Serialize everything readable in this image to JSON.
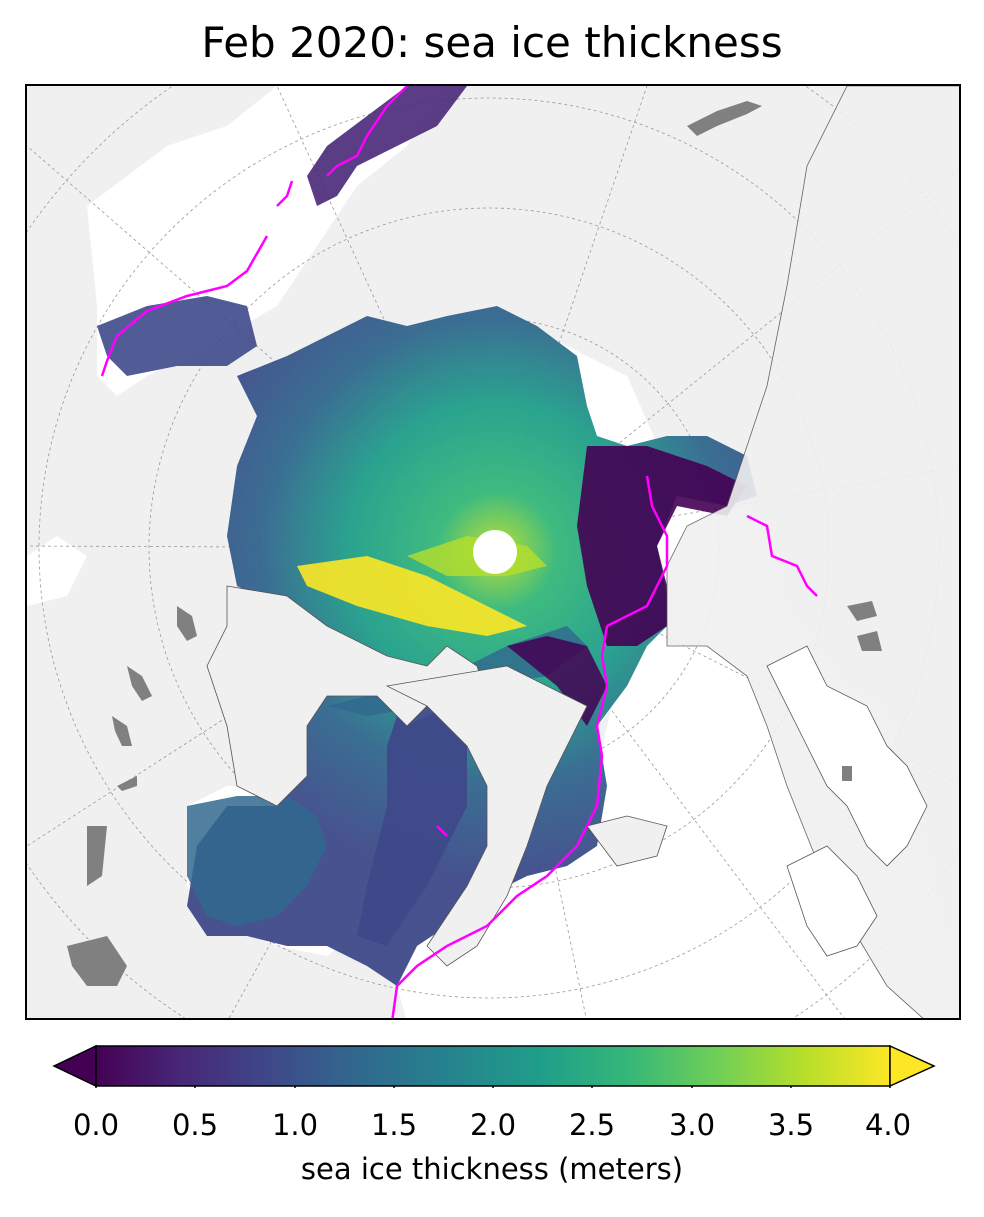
{
  "title": "Feb 2020: sea ice thickness",
  "colorbar": {
    "label": "sea ice thickness (meters)",
    "colormap": "viridis",
    "min": 0.0,
    "max": 4.0,
    "extend": "both",
    "ticks": [
      "0.0",
      "0.5",
      "1.0",
      "1.5",
      "2.0",
      "2.5",
      "3.0",
      "3.5",
      "4.0"
    ],
    "colors": [
      "#440154",
      "#482878",
      "#3e4989",
      "#31688e",
      "#26828e",
      "#1f9e89",
      "#35b779",
      "#6ece58",
      "#b5de2b",
      "#fde725"
    ]
  },
  "map": {
    "projection": "north polar stereographic",
    "land_color": "#f0f0f0",
    "ocean_color": "#ffffff",
    "lake_color": "#808080",
    "ice_edge_color": "#ff00ff",
    "pole_hole_color": "#ffffff"
  }
}
